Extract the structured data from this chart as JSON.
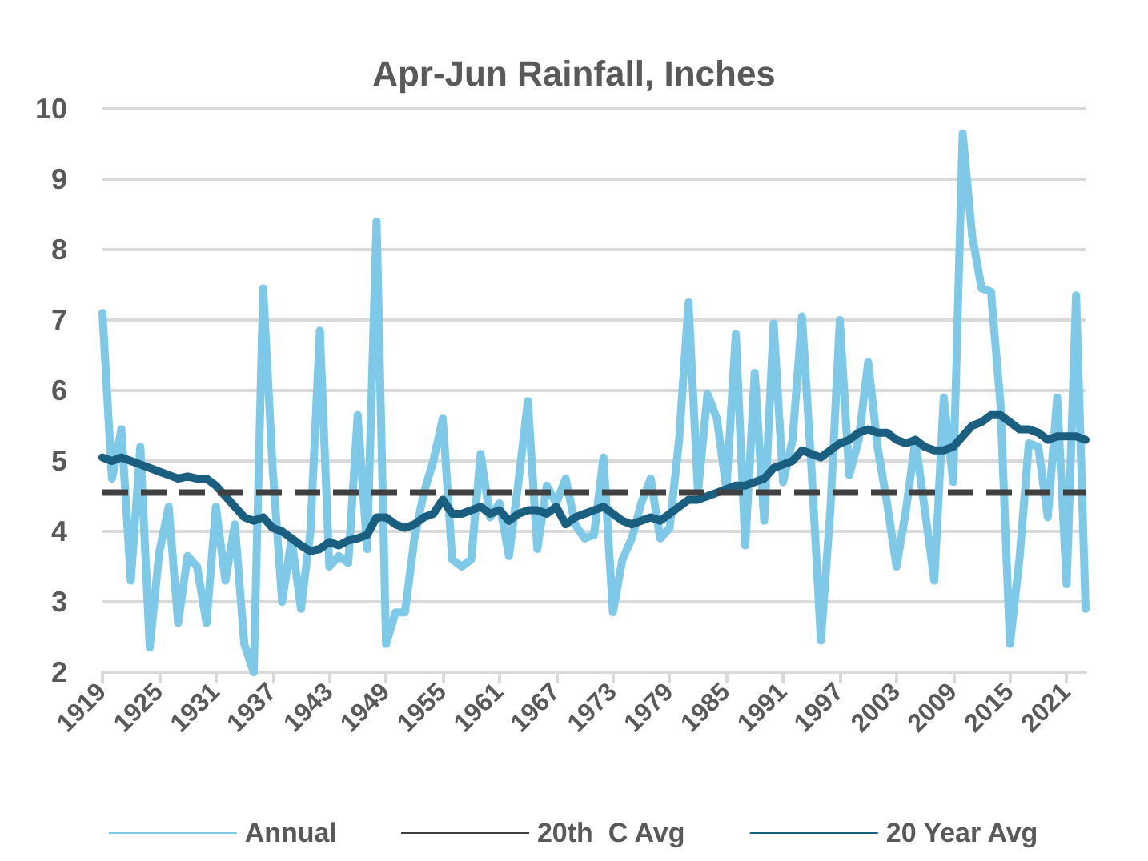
{
  "chart_data": {
    "type": "line",
    "title": "Apr-Jun Rainfall, Inches",
    "x": [
      1919,
      1920,
      1921,
      1922,
      1923,
      1924,
      1925,
      1926,
      1927,
      1928,
      1929,
      1930,
      1931,
      1932,
      1933,
      1934,
      1935,
      1936,
      1937,
      1938,
      1939,
      1940,
      1941,
      1942,
      1943,
      1944,
      1945,
      1946,
      1947,
      1948,
      1949,
      1950,
      1951,
      1952,
      1953,
      1954,
      1955,
      1956,
      1957,
      1958,
      1959,
      1960,
      1961,
      1962,
      1963,
      1964,
      1965,
      1966,
      1967,
      1968,
      1969,
      1970,
      1971,
      1972,
      1973,
      1974,
      1975,
      1976,
      1977,
      1978,
      1979,
      1980,
      1981,
      1982,
      1983,
      1984,
      1985,
      1986,
      1987,
      1988,
      1989,
      1990,
      1991,
      1992,
      1993,
      1994,
      1995,
      1996,
      1997,
      1998,
      1999,
      2000,
      2001,
      2002,
      2003,
      2004,
      2005,
      2006,
      2007,
      2008,
      2009,
      2010,
      2011,
      2012,
      2013,
      2014,
      2015,
      2016,
      2017,
      2018,
      2019,
      2020,
      2021,
      2022,
      2023
    ],
    "series": [
      {
        "name": "Annual",
        "color": "#7ec8e8",
        "values": [
          7.1,
          4.75,
          5.45,
          3.3,
          5.2,
          2.35,
          3.7,
          4.35,
          2.7,
          3.65,
          3.5,
          2.7,
          4.35,
          3.3,
          4.1,
          2.4,
          2.0,
          7.45,
          4.9,
          3.0,
          3.9,
          2.9,
          4.0,
          6.85,
          3.5,
          3.65,
          3.55,
          5.65,
          3.75,
          8.4,
          2.4,
          2.85,
          2.85,
          3.9,
          4.55,
          5.0,
          5.6,
          3.6,
          3.5,
          3.6,
          5.1,
          4.2,
          4.4,
          3.65,
          4.7,
          5.85,
          3.75,
          4.65,
          4.4,
          4.75,
          4.1,
          3.9,
          3.95,
          5.05,
          2.85,
          3.6,
          3.9,
          4.4,
          4.75,
          3.9,
          4.05,
          5.3,
          7.25,
          4.55,
          5.95,
          5.6,
          4.6,
          6.8,
          3.8,
          6.25,
          4.15,
          6.95,
          4.7,
          5.3,
          7.05,
          4.9,
          2.45,
          4.3,
          7.0,
          4.8,
          5.3,
          6.4,
          5.2,
          4.4,
          3.5,
          4.3,
          5.3,
          4.3,
          3.3,
          5.9,
          4.7,
          9.65,
          8.2,
          7.45,
          7.4,
          5.8,
          2.4,
          3.6,
          5.25,
          5.2,
          4.2,
          5.9,
          3.25,
          7.35,
          2.9
        ]
      },
      {
        "name": "20th  C Avg",
        "color": "#404040",
        "line_style": "dashed",
        "x": [
          1919,
          2023
        ],
        "values": [
          4.55,
          4.55
        ]
      },
      {
        "name": "20 Year Avg",
        "color": "#1a5f80",
        "values": [
          5.05,
          5.0,
          5.05,
          5.0,
          4.95,
          4.9,
          4.85,
          4.8,
          4.75,
          4.78,
          4.75,
          4.75,
          4.65,
          4.5,
          4.35,
          4.2,
          4.15,
          4.2,
          4.05,
          4.0,
          3.9,
          3.8,
          3.72,
          3.75,
          3.85,
          3.8,
          3.87,
          3.9,
          3.95,
          4.2,
          4.2,
          4.1,
          4.05,
          4.1,
          4.2,
          4.25,
          4.45,
          4.25,
          4.25,
          4.3,
          4.35,
          4.25,
          4.3,
          4.15,
          4.25,
          4.3,
          4.3,
          4.25,
          4.35,
          4.1,
          4.2,
          4.25,
          4.3,
          4.35,
          4.25,
          4.15,
          4.1,
          4.15,
          4.2,
          4.15,
          4.25,
          4.35,
          4.45,
          4.45,
          4.5,
          4.55,
          4.6,
          4.65,
          4.65,
          4.7,
          4.75,
          4.9,
          4.95,
          5.0,
          5.15,
          5.1,
          5.05,
          5.15,
          5.25,
          5.3,
          5.4,
          5.45,
          5.4,
          5.4,
          5.3,
          5.25,
          5.3,
          5.2,
          5.15,
          5.15,
          5.2,
          5.35,
          5.5,
          5.55,
          5.65,
          5.65,
          5.55,
          5.45,
          5.45,
          5.4,
          5.3,
          5.35,
          5.35,
          5.35,
          5.3
        ]
      }
    ],
    "xlim": [
      1919,
      2023
    ],
    "xticks": [
      1919,
      1925,
      1931,
      1937,
      1943,
      1949,
      1955,
      1961,
      1967,
      1973,
      1979,
      1985,
      1991,
      1997,
      2003,
      2009,
      2015,
      2021
    ],
    "ylim": [
      2,
      10
    ],
    "yticks": [
      2,
      3,
      4,
      5,
      6,
      7,
      8,
      9,
      10
    ],
    "grid": "y",
    "legend": "bottom",
    "marker": "none",
    "line_style": "solid"
  }
}
